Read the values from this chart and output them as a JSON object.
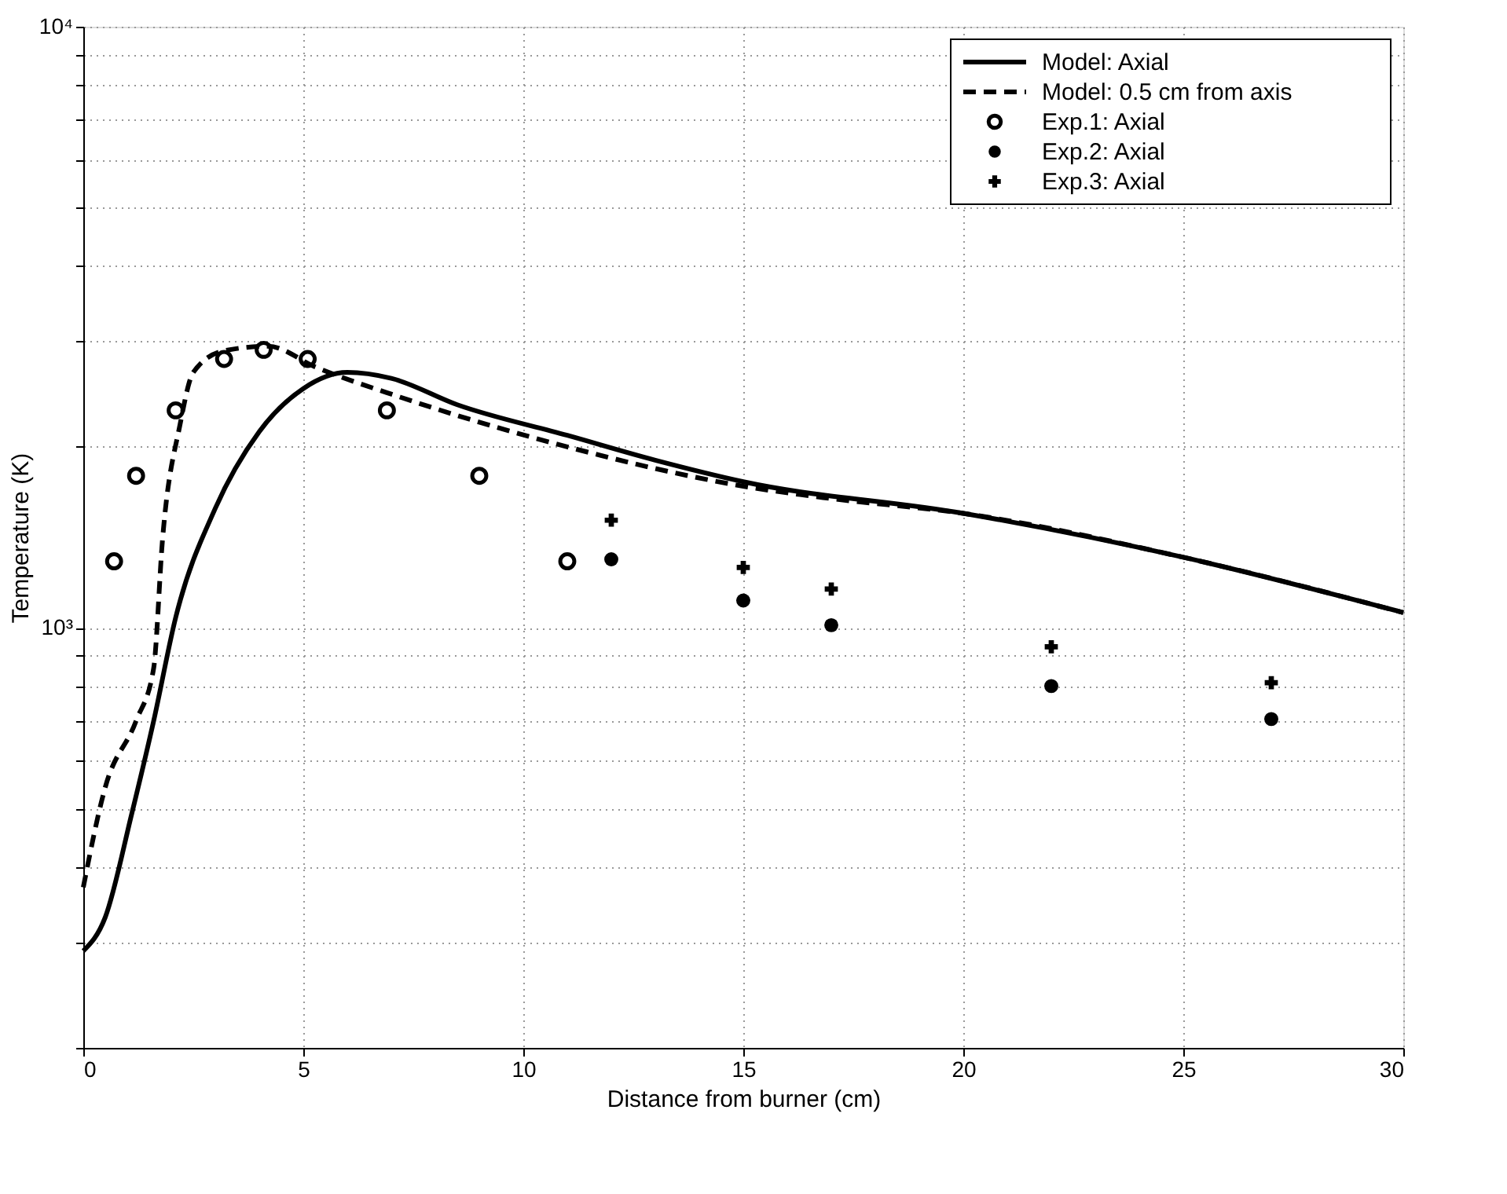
{
  "chart_data": {
    "type": "line",
    "xlabel": "Distance from burner (cm)",
    "ylabel": "Temperature (K)",
    "xlim": [
      0,
      30
    ],
    "xticks": [
      0,
      5,
      10,
      15,
      20,
      25,
      30
    ],
    "ylim": [
      200,
      10000
    ],
    "log": "y",
    "yticks": [
      {
        "value": 200,
        "label": null
      },
      {
        "value": 300,
        "label": null
      },
      {
        "value": 400,
        "label": null
      },
      {
        "value": 500,
        "label": null
      },
      {
        "value": 600,
        "label": null
      },
      {
        "value": 700,
        "label": null
      },
      {
        "value": 800,
        "label": null
      },
      {
        "value": 900,
        "label": null
      },
      {
        "value": 1000,
        "label": "10³"
      },
      {
        "value": 2000,
        "label": null
      },
      {
        "value": 3000,
        "label": null
      },
      {
        "value": 4000,
        "label": null
      },
      {
        "value": 5000,
        "label": null
      },
      {
        "value": 6000,
        "label": null
      },
      {
        "value": 7000,
        "label": null
      },
      {
        "value": 8000,
        "label": null
      },
      {
        "value": 9000,
        "label": null
      },
      {
        "value": 10000,
        "label": "10⁴"
      }
    ],
    "grid": true,
    "legend": "top right",
    "series": [
      {
        "name": "Model: Axial",
        "line_style": "solid",
        "marker": "none",
        "color": "#000000",
        "x": [
          0,
          0.5,
          1.1,
          1.6,
          2.1,
          3,
          4,
          5,
          6,
          7,
          8.5,
          11,
          13,
          15,
          20,
          25,
          30
        ],
        "values": [
          290,
          330,
          490,
          700,
          1040,
          1580,
          2120,
          2500,
          2660,
          2600,
          2350,
          2090,
          1900,
          1750,
          1550,
          1310,
          1060
        ]
      },
      {
        "name": "Model: 0.5 cm from axis",
        "line_style": "dashed",
        "marker": "none",
        "color": "#000000",
        "x": [
          0,
          0.5,
          1.2,
          1.6,
          1.8,
          2.2,
          2.5,
          3.2,
          4.2,
          5.3,
          7.2,
          11,
          15,
          17,
          20,
          25,
          30
        ],
        "values": [
          370,
          543,
          700,
          857,
          1400,
          2180,
          2660,
          2890,
          2940,
          2710,
          2420,
          2000,
          1720,
          1640,
          1550,
          1310,
          1060
        ]
      },
      {
        "name": "Exp.1: Axial",
        "type": "scatter",
        "marker": "circle",
        "color": "#000000",
        "x": [
          0.7,
          1.2,
          2.1,
          3.2,
          4.1,
          5.1,
          6.9,
          9,
          11
        ],
        "values": [
          1290,
          1790,
          2300,
          2800,
          2900,
          2800,
          2300,
          1790,
          1290
        ]
      },
      {
        "name": "Exp.2: Axial",
        "type": "scatter",
        "marker": "circle",
        "color": "#000000",
        "x": [
          12,
          15,
          17,
          22,
          27
        ],
        "values": [
          1300,
          1110,
          1010,
          800,
          705
        ]
      },
      {
        "name": "Exp.3: Axial",
        "type": "scatter",
        "marker": "cross",
        "color": "#000000",
        "x": [
          12,
          15,
          17,
          22,
          27
        ],
        "values": [
          1510,
          1260,
          1160,
          930,
          810
        ]
      }
    ]
  }
}
